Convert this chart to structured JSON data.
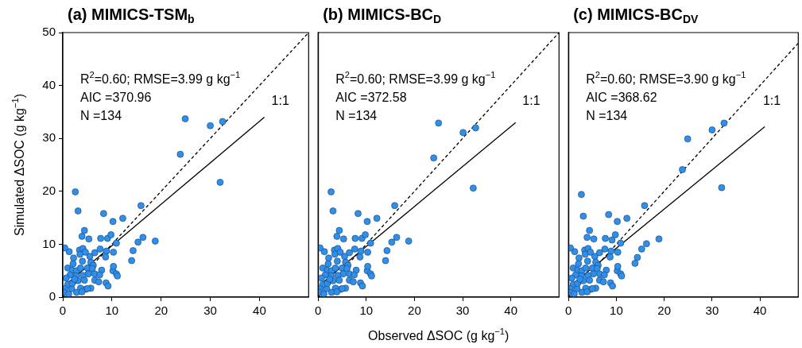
{
  "chart_data": [
    {
      "type": "scatter",
      "title": "(a) MIMICS-TSM$_{b}$",
      "ylabel": "Simulated ΔSOC (g kg$^{−1}$)",
      "xlim": [
        0,
        50
      ],
      "ylim": [
        0,
        50
      ],
      "xticks": [
        0,
        10,
        20,
        30,
        40
      ],
      "yticks": [
        0,
        10,
        20,
        30,
        40,
        50
      ],
      "grid": false,
      "legend": false,
      "annotations": [
        "R$^{2}$=0.60; RMSE=3.99 g kg$^{−1}$",
        "AIC =370.96",
        "N =134",
        "1:1"
      ],
      "series": [
        {
          "type": "scatter",
          "marker": "circle",
          "color": "#2f8fea",
          "x": [
            2.55,
            3.1,
            8.3,
            15.9,
            12.2,
            10.2,
            4.4,
            3.9,
            5.3,
            7.7,
            9.1,
            9.8,
            10.9,
            16.3,
            15.3,
            18.8,
            14.3,
            14.0,
            10.3,
            8.9,
            7.6,
            8.7,
            6.5,
            5.5,
            3.4,
            4.1,
            3.5,
            4.6,
            1.3,
            0.4,
            2.2,
            4.0,
            2.1,
            5.7,
            6.2,
            7.9,
            10.2,
            10.3,
            10.9,
            11.1,
            1.0,
            1.9,
            2.8,
            3.6,
            5.0,
            6.0,
            6.5,
            7.5,
            5.2,
            4.1,
            2.7,
            1.5,
            0.7,
            3.1,
            4.4,
            6.5,
            7.3,
            8.8,
            9.2,
            5.7,
            4.7,
            3.6,
            2.8,
            3.9,
            5.0,
            1.8,
            1.0,
            0.4,
            0.4,
            1.2,
            1.9,
            2.4,
            24.9,
            30.0,
            32.5,
            23.9,
            32.0
          ],
          "values": [
            19.9,
            16.3,
            15.8,
            17.3,
            14.9,
            14.3,
            12.6,
            11.5,
            11.0,
            11.1,
            11.1,
            11.8,
            10.2,
            11.3,
            10.4,
            10.6,
            8.8,
            6.9,
            8.5,
            8.7,
            9.1,
            7.6,
            8.4,
            7.7,
            8.9,
            9.2,
            8.1,
            8.5,
            8.6,
            9.3,
            7.4,
            6.8,
            6.3,
            6.6,
            6.0,
            5.1,
            5.0,
            5.8,
            4.4,
            4.0,
            5.5,
            5.1,
            5.0,
            5.5,
            5.5,
            5.4,
            4.4,
            4.2,
            4.4,
            4.1,
            4.0,
            4.2,
            3.6,
            3.1,
            3.2,
            3.2,
            2.9,
            2.7,
            2.1,
            1.7,
            1.5,
            1.7,
            0.9,
            1.0,
            1.6,
            1.6,
            2.4,
            1.6,
            0.9,
            0.6,
            2.6,
            3.4,
            33.7,
            32.4,
            33.2,
            27.0,
            21.7
          ]
        },
        {
          "type": "line",
          "marker": "none",
          "line_style": "solid",
          "color": "#000000",
          "x": [
            0.5,
            41
          ],
          "values": [
            2.3,
            34
          ]
        },
        {
          "type": "line",
          "marker": "none",
          "line_style": "dashed",
          "color": "#000000",
          "x": [
            0,
            50
          ],
          "values": [
            0,
            50
          ]
        }
      ]
    },
    {
      "type": "scatter",
      "title": "(b) MIMICS-BC$_{D}$",
      "xlabel": "Observed ΔSOC (g kg$^{−1}$)",
      "xlim": [
        0,
        50
      ],
      "ylim": [
        0,
        50
      ],
      "xticks": [
        0,
        10,
        20,
        30,
        40
      ],
      "yticks": [
        0,
        10,
        20,
        30,
        40,
        50
      ],
      "grid": false,
      "legend": false,
      "tick_labels": "x",
      "annotations": [
        "R$^{2}$=0.60; RMSE=3.99 g kg$^{−1}$",
        "AIC =372.58",
        "N =134",
        "1:1"
      ],
      "series": [
        {
          "type": "scatter",
          "marker": "circle",
          "color": "#2f8fea",
          "x": [
            2.7,
            3.1,
            8.3,
            15.9,
            12.2,
            10.2,
            4.4,
            3.9,
            5.3,
            7.7,
            9.1,
            9.8,
            10.9,
            16.3,
            15.3,
            18.8,
            14.3,
            14.0,
            10.3,
            8.9,
            7.6,
            8.7,
            6.5,
            5.5,
            3.4,
            4.1,
            3.5,
            4.6,
            1.3,
            0.4,
            2.2,
            4.0,
            2.1,
            5.7,
            6.2,
            7.9,
            10.2,
            10.3,
            10.9,
            11.1,
            1.0,
            1.9,
            2.8,
            3.6,
            5.0,
            6.0,
            6.5,
            7.5,
            5.2,
            4.1,
            2.7,
            1.5,
            0.7,
            3.1,
            4.4,
            6.5,
            7.3,
            8.8,
            9.2,
            5.7,
            4.7,
            3.6,
            2.8,
            3.9,
            5.0,
            1.8,
            1.0,
            0.4,
            0.4,
            1.2,
            1.9,
            2.4,
            25.0,
            30.1,
            32.7,
            24.0,
            32.2
          ],
          "values": [
            19.9,
            16.3,
            15.8,
            17.3,
            14.9,
            14.3,
            12.6,
            11.5,
            11.0,
            11.1,
            11.1,
            11.8,
            10.2,
            11.3,
            10.4,
            10.6,
            8.8,
            6.9,
            8.5,
            8.7,
            9.1,
            7.6,
            8.4,
            7.7,
            8.9,
            9.2,
            8.1,
            8.5,
            8.6,
            9.3,
            7.4,
            6.8,
            6.3,
            6.6,
            6.0,
            5.1,
            5.0,
            5.8,
            4.4,
            4.0,
            5.5,
            5.1,
            5.0,
            5.5,
            5.5,
            5.4,
            4.4,
            4.2,
            4.4,
            4.1,
            4.0,
            4.2,
            3.6,
            3.1,
            3.2,
            3.2,
            2.9,
            2.7,
            2.1,
            1.7,
            1.5,
            1.7,
            0.9,
            1.0,
            1.6,
            1.6,
            2.4,
            1.6,
            0.9,
            0.6,
            2.6,
            3.4,
            32.9,
            31.1,
            32.0,
            26.3,
            20.6
          ]
        },
        {
          "type": "line",
          "marker": "none",
          "line_style": "solid",
          "color": "#000000",
          "x": [
            0.5,
            41
          ],
          "values": [
            2.4,
            33
          ]
        },
        {
          "type": "line",
          "marker": "none",
          "line_style": "dashed",
          "color": "#000000",
          "x": [
            0,
            50
          ],
          "values": [
            0,
            50
          ]
        }
      ]
    },
    {
      "type": "scatter",
      "title": "(c) MIMICS-BC$_{DV}$",
      "xlim": [
        0,
        48
      ],
      "ylim": [
        0,
        50
      ],
      "xticks": [
        0,
        10,
        20,
        30,
        40
      ],
      "yticks": [
        0,
        10,
        20,
        30,
        40,
        50
      ],
      "grid": false,
      "legend": false,
      "tick_labels": "x",
      "annotations": [
        "R$^{2}$=0.60; RMSE=3.90 g kg$^{−1}$",
        "AIC =368.62",
        "N =134",
        "1:1"
      ],
      "series": [
        {
          "type": "scatter",
          "marker": "circle",
          "color": "#2f8fea",
          "x": [
            2.7,
            3.1,
            8.4,
            15.9,
            12.2,
            10.2,
            4.4,
            3.9,
            5.3,
            7.7,
            9.1,
            9.8,
            10.9,
            16.3,
            15.3,
            18.9,
            14.4,
            13.9,
            10.3,
            8.9,
            7.6,
            8.7,
            6.5,
            5.5,
            3.4,
            4.1,
            3.5,
            4.6,
            1.3,
            0.4,
            2.2,
            4.0,
            2.1,
            5.7,
            6.2,
            7.9,
            10.2,
            10.3,
            10.9,
            11.1,
            1.0,
            1.9,
            2.8,
            3.6,
            5.0,
            6.0,
            6.5,
            7.5,
            5.2,
            4.1,
            2.7,
            1.5,
            0.7,
            3.1,
            4.4,
            6.5,
            7.3,
            8.8,
            9.2,
            5.7,
            4.7,
            3.6,
            2.8,
            3.9,
            5.0,
            1.8,
            1.0,
            0.4,
            0.4,
            1.2,
            1.9,
            2.4,
            24.9,
            30.0,
            32.5,
            23.8,
            32.0
          ],
          "values": [
            19.4,
            15.3,
            15.6,
            17.3,
            14.9,
            14.3,
            12.6,
            11.3,
            11.0,
            11.1,
            10.8,
            11.8,
            10.2,
            10.1,
            9.1,
            11.0,
            7.5,
            6.4,
            8.5,
            8.7,
            9.1,
            7.6,
            8.4,
            7.7,
            8.9,
            9.2,
            8.1,
            8.5,
            8.6,
            9.3,
            7.4,
            6.8,
            6.3,
            6.6,
            6.0,
            5.1,
            5.0,
            5.8,
            4.4,
            4.0,
            5.5,
            5.1,
            5.0,
            5.5,
            5.5,
            5.4,
            4.4,
            4.2,
            4.4,
            4.1,
            4.0,
            4.2,
            3.6,
            3.1,
            3.2,
            3.2,
            2.9,
            2.7,
            2.1,
            1.7,
            1.5,
            1.7,
            0.9,
            1.0,
            1.6,
            1.6,
            2.4,
            1.6,
            0.9,
            0.6,
            2.6,
            3.4,
            29.9,
            31.6,
            32.9,
            24.1,
            20.7
          ]
        },
        {
          "type": "line",
          "marker": "none",
          "line_style": "solid",
          "color": "#000000",
          "x": [
            0.5,
            41
          ],
          "values": [
            2.2,
            32.2
          ]
        },
        {
          "type": "line",
          "marker": "none",
          "line_style": "dashed",
          "color": "#000000",
          "x": [
            0,
            48
          ],
          "values": [
            0,
            48
          ]
        }
      ]
    }
  ]
}
